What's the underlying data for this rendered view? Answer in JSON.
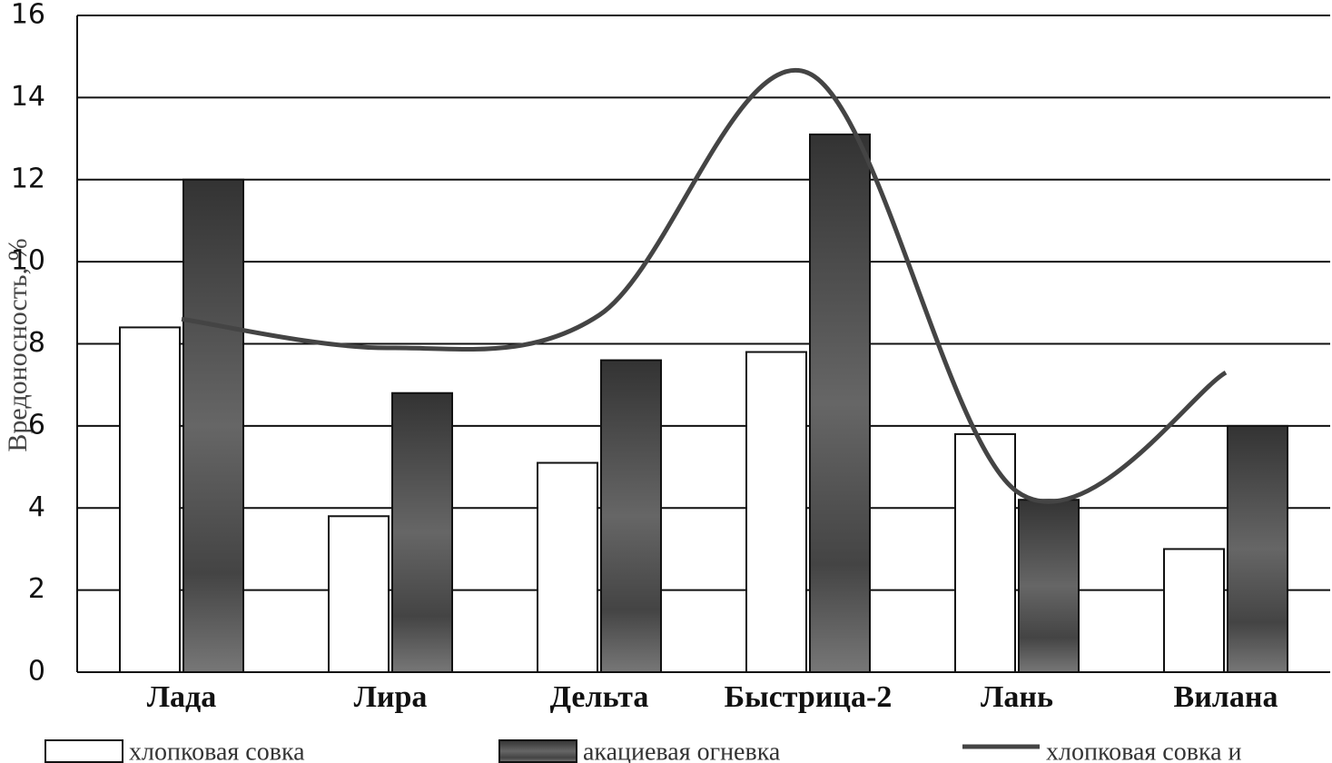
{
  "chart_data": {
    "type": "bar-line",
    "y_label": "Вредоносность, %",
    "categories": [
      "Лада",
      "Лира",
      "Дельта",
      "Быстрица-2",
      "Лань",
      "Вилана"
    ],
    "series": [
      {
        "name": "хлопковая совка",
        "type": "bar",
        "color": "#ffffff",
        "values": [
          8.4,
          3.8,
          5.1,
          7.8,
          5.8,
          3.0
        ]
      },
      {
        "name": "акациевая огневка",
        "type": "bar",
        "color": "#555555",
        "values": [
          12,
          6.8,
          7.6,
          13.1,
          4.2,
          6.0
        ]
      },
      {
        "name": "хлопковая совка и",
        "type": "line",
        "color": "#444444",
        "values": [
          8.6,
          7.9,
          8.7,
          14.6,
          4.4,
          7.3
        ]
      }
    ],
    "ylim": [
      0,
      16
    ],
    "yticks": [
      0,
      2,
      4,
      6,
      8,
      10,
      12,
      14,
      16
    ],
    "grid": true
  }
}
